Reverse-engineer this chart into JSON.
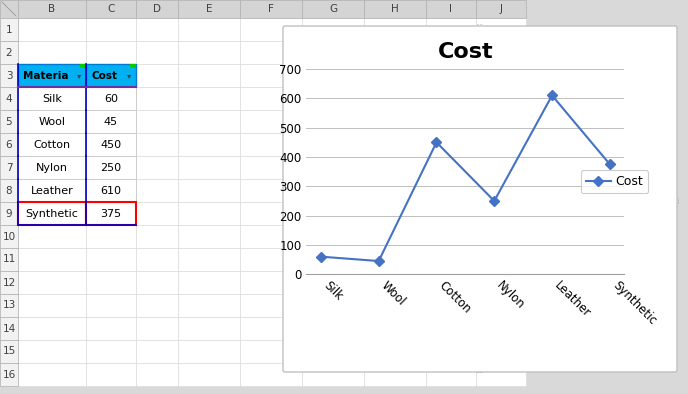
{
  "categories": [
    "Silk",
    "Wool",
    "Cotton",
    "Nylon",
    "Leather",
    "Synthetic"
  ],
  "values": [
    60,
    45,
    450,
    250,
    610,
    375
  ],
  "title": "Cost",
  "title_fontsize": 16,
  "title_fontweight": "bold",
  "line_color": "#4472C4",
  "marker": "D",
  "marker_size": 5,
  "ylim": [
    0,
    700
  ],
  "yticks": [
    0,
    100,
    200,
    300,
    400,
    500,
    600,
    700
  ],
  "legend_label": "Cost",
  "chart_bg": "#FFFFFF",
  "grid_color": "#BFBFBF",
  "excel_bg": "#D9D9D9",
  "col_header_bg": "#D9D9D9",
  "row_header_bg": "#D9D9D9",
  "cell_bg": "#FFFFFF",
  "table_header_cyan": "#00B0F0",
  "col_letters": [
    "B",
    "C",
    "D",
    "E",
    "F",
    "G",
    "H",
    "I",
    "J"
  ],
  "num_rows": 16,
  "row_labels": [
    "Silk",
    "Wool",
    "Cotton",
    "Nylon",
    "Leather",
    "Synthetic"
  ],
  "row_values": [
    60,
    45,
    450,
    250,
    610,
    375
  ],
  "chart_border_color": "#C8C8C8",
  "axis_color": "#808080",
  "tick_fontsize": 8.5,
  "legend_fontsize": 9
}
